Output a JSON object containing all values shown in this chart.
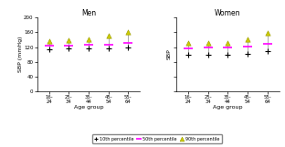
{
  "men_ages": [
    "16-\n24",
    "25-\n34",
    "35-\n44",
    "45-\n54",
    "55-\n64"
  ],
  "women_ages": [
    "16-\n24",
    "25-\n34",
    "35-\n44",
    "45-\n54",
    "55-\n64"
  ],
  "men_p10": [
    113,
    116,
    116,
    116,
    118
  ],
  "men_p50": [
    124,
    124,
    126,
    126,
    130
  ],
  "men_p90": [
    136,
    138,
    140,
    150,
    162
  ],
  "women_p10": [
    100,
    100,
    100,
    102,
    110
  ],
  "women_p50": [
    116,
    118,
    118,
    122,
    128
  ],
  "women_p90": [
    130,
    130,
    132,
    142,
    158
  ],
  "ylim": [
    0,
    200
  ],
  "yticks": [
    0,
    40,
    80,
    120,
    160,
    200
  ],
  "ylabel_left": "SBP (mmHg)",
  "ylabel_right": "SBP",
  "title_left": "Men",
  "title_right": "Women",
  "xlabel": "Age group",
  "color_p10": "#000000",
  "color_p50": "#ff00ff",
  "color_p90": "#cccc00",
  "line_color": "#aaaaaa",
  "background": "#ffffff",
  "legend_labels": [
    "10th percentile",
    "50th percentile",
    "90th percentile"
  ]
}
